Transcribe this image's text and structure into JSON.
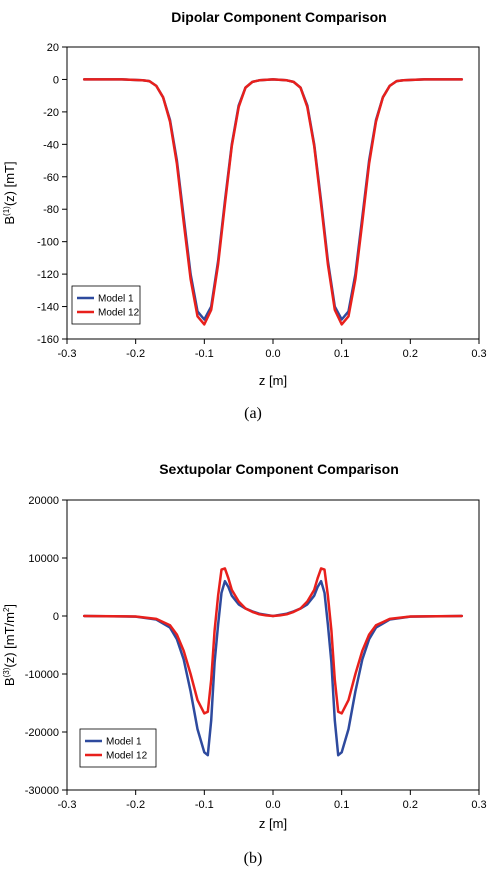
{
  "chart_data": [
    {
      "type": "line",
      "title": "Dipolar Component Comparison",
      "xlabel": "z [m]",
      "ylabel": {
        "main": "B",
        "sup": "(1)",
        "rest": "(z) [mT]"
      },
      "caption": "(a)",
      "xlim": [
        -0.3,
        0.3
      ],
      "ylim": [
        -160,
        20
      ],
      "xticks": [
        "-0.3",
        "-0.2",
        "-0.1",
        "0.0",
        "0.1",
        "0.2",
        "0.3"
      ],
      "yticks": [
        "20",
        "0",
        "-20",
        "-40",
        "-60",
        "-80",
        "-100",
        "-120",
        "-140",
        "-160"
      ],
      "grid": false,
      "legend_position": "bottom-left",
      "series": [
        {
          "name": "Model 1",
          "color": "#2e4a9e",
          "x": [
            -0.275,
            -0.22,
            -0.19,
            -0.18,
            -0.17,
            -0.16,
            -0.15,
            -0.14,
            -0.13,
            -0.12,
            -0.11,
            -0.1,
            -0.09,
            -0.08,
            -0.07,
            -0.06,
            -0.05,
            -0.04,
            -0.03,
            -0.02,
            0.0,
            0.02,
            0.03,
            0.04,
            0.05,
            0.06,
            0.07,
            0.08,
            0.09,
            0.1,
            0.11,
            0.12,
            0.13,
            0.14,
            0.15,
            0.16,
            0.17,
            0.18,
            0.19,
            0.22,
            0.275
          ],
          "y": [
            0,
            0,
            -0.5,
            -1,
            -4,
            -11,
            -25,
            -50,
            -85,
            -120,
            -143,
            -148,
            -140,
            -112,
            -75,
            -40,
            -16,
            -5,
            -1.5,
            -0.5,
            0,
            -0.5,
            -1.5,
            -5,
            -16,
            -40,
            -75,
            -112,
            -140,
            -148,
            -143,
            -120,
            -85,
            -50,
            -25,
            -11,
            -4,
            -1,
            -0.5,
            0,
            0
          ]
        },
        {
          "name": "Model 12",
          "color": "#e8201c",
          "x": [
            -0.275,
            -0.22,
            -0.19,
            -0.18,
            -0.17,
            -0.16,
            -0.15,
            -0.14,
            -0.13,
            -0.12,
            -0.11,
            -0.1,
            -0.09,
            -0.08,
            -0.07,
            -0.06,
            -0.05,
            -0.04,
            -0.03,
            -0.02,
            0.0,
            0.02,
            0.03,
            0.04,
            0.05,
            0.06,
            0.07,
            0.08,
            0.09,
            0.1,
            0.11,
            0.12,
            0.13,
            0.14,
            0.15,
            0.16,
            0.17,
            0.18,
            0.19,
            0.22,
            0.275
          ],
          "y": [
            0,
            0,
            -0.5,
            -1,
            -4,
            -11,
            -26,
            -52,
            -88,
            -123,
            -146,
            -151,
            -142,
            -114,
            -77,
            -41,
            -17,
            -5,
            -1.5,
            -0.5,
            0,
            -0.5,
            -1.5,
            -5,
            -17,
            -41,
            -77,
            -114,
            -142,
            -151,
            -146,
            -123,
            -88,
            -52,
            -26,
            -11,
            -4,
            -1,
            -0.5,
            0,
            0
          ]
        }
      ]
    },
    {
      "type": "line",
      "title": "Sextupolar Component Comparison",
      "xlabel": "z [m]",
      "ylabel": {
        "main": "B",
        "sup": "(3)",
        "rest": "(z) [mT/m",
        "sup2": "2",
        "rest2": "]"
      },
      "caption": "(b)",
      "xlim": [
        -0.3,
        0.3
      ],
      "ylim": [
        -30000,
        20000
      ],
      "xticks": [
        "-0.3",
        "-0.2",
        "-0.1",
        "0.0",
        "0.1",
        "0.2",
        "0.3"
      ],
      "yticks": [
        "20000",
        "10000",
        "0",
        "-10000",
        "-20000",
        "-30000"
      ],
      "grid": false,
      "legend_position": "bottom-left",
      "series": [
        {
          "name": "Model 1",
          "color": "#2e4a9e",
          "x": [
            -0.275,
            -0.2,
            -0.17,
            -0.15,
            -0.14,
            -0.13,
            -0.12,
            -0.11,
            -0.1,
            -0.095,
            -0.09,
            -0.085,
            -0.08,
            -0.075,
            -0.07,
            -0.065,
            -0.06,
            -0.05,
            -0.04,
            -0.03,
            -0.02,
            -0.01,
            0.0,
            0.01,
            0.02,
            0.03,
            0.04,
            0.05,
            0.06,
            0.065,
            0.07,
            0.075,
            0.08,
            0.085,
            0.09,
            0.095,
            0.1,
            0.11,
            0.12,
            0.13,
            0.14,
            0.15,
            0.17,
            0.2,
            0.275
          ],
          "y": [
            0,
            -100,
            -600,
            -2000,
            -4000,
            -7500,
            -13000,
            -19500,
            -23500,
            -24000,
            -18000,
            -8000,
            -1500,
            4000,
            6000,
            5000,
            3500,
            2000,
            1300,
            800,
            400,
            200,
            0,
            200,
            400,
            800,
            1300,
            2000,
            3500,
            5000,
            6000,
            4000,
            -1500,
            -8000,
            -18000,
            -24000,
            -23500,
            -19500,
            -13000,
            -7500,
            -4000,
            -2000,
            -600,
            -100,
            0
          ]
        },
        {
          "name": "Model 12",
          "color": "#e8201c",
          "x": [
            -0.275,
            -0.2,
            -0.17,
            -0.15,
            -0.14,
            -0.13,
            -0.12,
            -0.11,
            -0.1,
            -0.095,
            -0.09,
            -0.085,
            -0.08,
            -0.075,
            -0.07,
            -0.065,
            -0.06,
            -0.05,
            -0.04,
            -0.03,
            -0.02,
            -0.01,
            0.0,
            0.01,
            0.02,
            0.03,
            0.04,
            0.05,
            0.06,
            0.065,
            0.07,
            0.075,
            0.08,
            0.085,
            0.09,
            0.095,
            0.1,
            0.11,
            0.12,
            0.13,
            0.14,
            0.15,
            0.17,
            0.2,
            0.275
          ],
          "y": [
            0,
            -80,
            -500,
            -1600,
            -3200,
            -6000,
            -10000,
            -14500,
            -16800,
            -16500,
            -11000,
            -2500,
            3500,
            8000,
            8200,
            6500,
            4500,
            2500,
            1300,
            700,
            300,
            100,
            0,
            100,
            300,
            700,
            1300,
            2500,
            4500,
            6500,
            8200,
            8000,
            3500,
            -2500,
            -11000,
            -16500,
            -16800,
            -14500,
            -10000,
            -6000,
            -3200,
            -1600,
            -500,
            -80,
            0
          ]
        }
      ]
    }
  ]
}
